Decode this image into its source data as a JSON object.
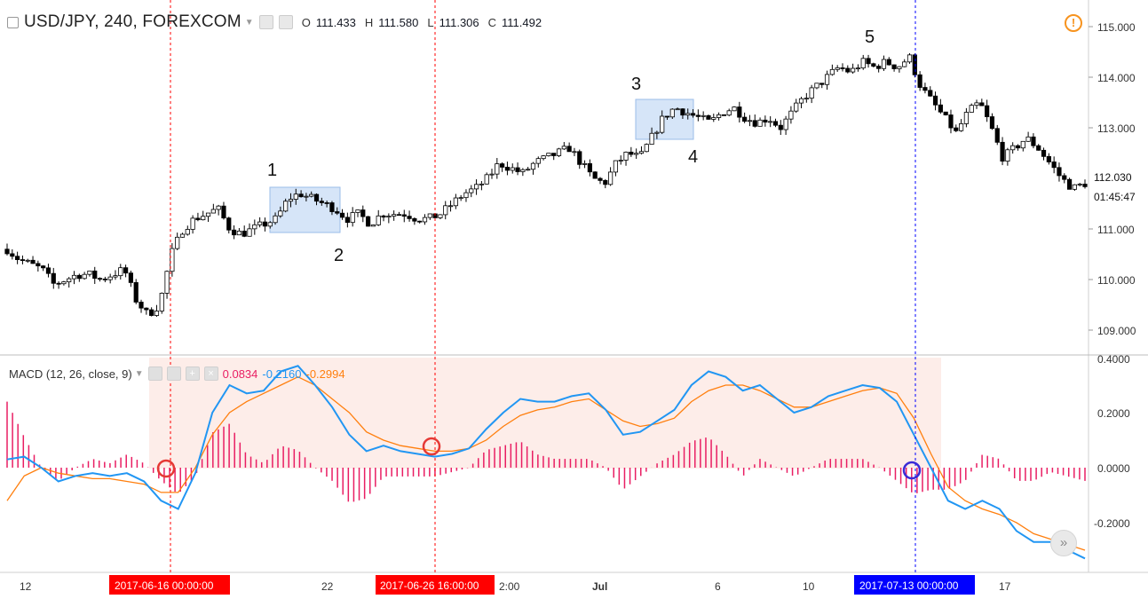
{
  "header": {
    "symbol": "USD/JPY, 240, FOREXCOM",
    "open_label": "O",
    "open": "111.433",
    "high_label": "H",
    "high": "111.580",
    "low_label": "L",
    "low": "111.306",
    "close_label": "C",
    "close": "111.492"
  },
  "price_axis": {
    "ticks": [
      "115.000",
      "114.000",
      "113.000",
      "112.000",
      "111.000",
      "110.000",
      "109.000"
    ],
    "last_price": "112.030",
    "countdown": "01:45:47"
  },
  "macd": {
    "title": "MACD (12, 26, close, 9)",
    "histogram_value": "0.0834",
    "macd_value": "-0.2160",
    "signal_value": "-0.2994",
    "axis_ticks": [
      "0.4000",
      "0.2000",
      "0.0000",
      "-0.2000"
    ],
    "colors": {
      "macd": "#2196f3",
      "signal": "#ff7f0e",
      "histogram": "#e91e63"
    }
  },
  "time_axis": {
    "ticks": [
      "12",
      "22",
      "2:00",
      "Jul",
      "6",
      "10",
      "17"
    ],
    "markers": [
      {
        "label": "2017-06-16 00:00:00",
        "color": "#ff0000"
      },
      {
        "label": "2017-06-26 16:00:00",
        "color": "#ff0000"
      },
      {
        "label": "2017-07-13 00:00:00",
        "color": "#0000ff"
      }
    ]
  },
  "annotations": [
    "1",
    "2",
    "3",
    "4",
    "5"
  ],
  "icons": {
    "alert": "!",
    "scroll_to_latest": "»"
  },
  "chart_data": {
    "type": "candlestick",
    "price_series": {
      "name": "USD/JPY",
      "x": "4h bars, 2017-06-12 to 2017-07-19",
      "ylim": [
        108.6,
        115.3
      ],
      "close_path": [
        110.6,
        110.4,
        110.3,
        110.2,
        109.9,
        110.0,
        110.1,
        110.1,
        110.0,
        110.1,
        110.2,
        109.6,
        109.3,
        109.5,
        110.5,
        111.0,
        111.2,
        111.3,
        111.4,
        111.0,
        110.9,
        111.0,
        111.1,
        111.2,
        111.6,
        111.7,
        111.6,
        111.5,
        111.4,
        111.2,
        111.3,
        111.1,
        111.3,
        111.3,
        111.3,
        111.2,
        111.2,
        111.3,
        111.5,
        111.7,
        111.8,
        112.0,
        112.3,
        112.2,
        112.1,
        112.3,
        112.4,
        112.5,
        112.6,
        112.3,
        112.0,
        111.9,
        112.3,
        112.5,
        112.4,
        112.8,
        113.2,
        113.4,
        113.3,
        113.2,
        113.1,
        113.3,
        113.4,
        113.2,
        113.1,
        113.2,
        113.0,
        113.3,
        113.6,
        113.8,
        114.0,
        114.2,
        114.1,
        114.3,
        114.2,
        114.3,
        114.2,
        114.4,
        113.8,
        113.5,
        113.2,
        112.9,
        113.3,
        113.5,
        113.0,
        112.4,
        112.6,
        112.8,
        112.6,
        112.3,
        112.0,
        111.8,
        111.9
      ]
    },
    "macd_series": {
      "ylim": [
        -0.36,
        0.4
      ],
      "macd": [
        0.03,
        0.04,
        0.0,
        -0.05,
        -0.03,
        -0.02,
        -0.03,
        -0.02,
        -0.05,
        -0.12,
        -0.15,
        -0.02,
        0.2,
        0.3,
        0.27,
        0.28,
        0.35,
        0.37,
        0.3,
        0.22,
        0.12,
        0.06,
        0.08,
        0.06,
        0.05,
        0.04,
        0.05,
        0.07,
        0.14,
        0.2,
        0.25,
        0.24,
        0.24,
        0.26,
        0.27,
        0.21,
        0.12,
        0.13,
        0.17,
        0.21,
        0.3,
        0.35,
        0.33,
        0.28,
        0.3,
        0.25,
        0.2,
        0.22,
        0.26,
        0.28,
        0.3,
        0.29,
        0.24,
        0.12,
        0.0,
        -0.12,
        -0.15,
        -0.12,
        -0.15,
        -0.23,
        -0.27,
        -0.27,
        -0.3,
        -0.33
      ],
      "signal": [
        -0.12,
        -0.03,
        0.0,
        -0.02,
        -0.03,
        -0.04,
        -0.04,
        -0.05,
        -0.06,
        -0.09,
        -0.09,
        0.0,
        0.12,
        0.2,
        0.24,
        0.27,
        0.3,
        0.33,
        0.3,
        0.25,
        0.2,
        0.13,
        0.1,
        0.08,
        0.07,
        0.06,
        0.06,
        0.07,
        0.1,
        0.15,
        0.19,
        0.21,
        0.22,
        0.24,
        0.25,
        0.21,
        0.17,
        0.15,
        0.16,
        0.18,
        0.24,
        0.28,
        0.3,
        0.3,
        0.28,
        0.25,
        0.22,
        0.22,
        0.24,
        0.26,
        0.28,
        0.29,
        0.27,
        0.18,
        0.05,
        -0.07,
        -0.12,
        -0.15,
        -0.17,
        -0.2,
        -0.24,
        -0.26,
        -0.28,
        -0.3
      ]
    }
  }
}
